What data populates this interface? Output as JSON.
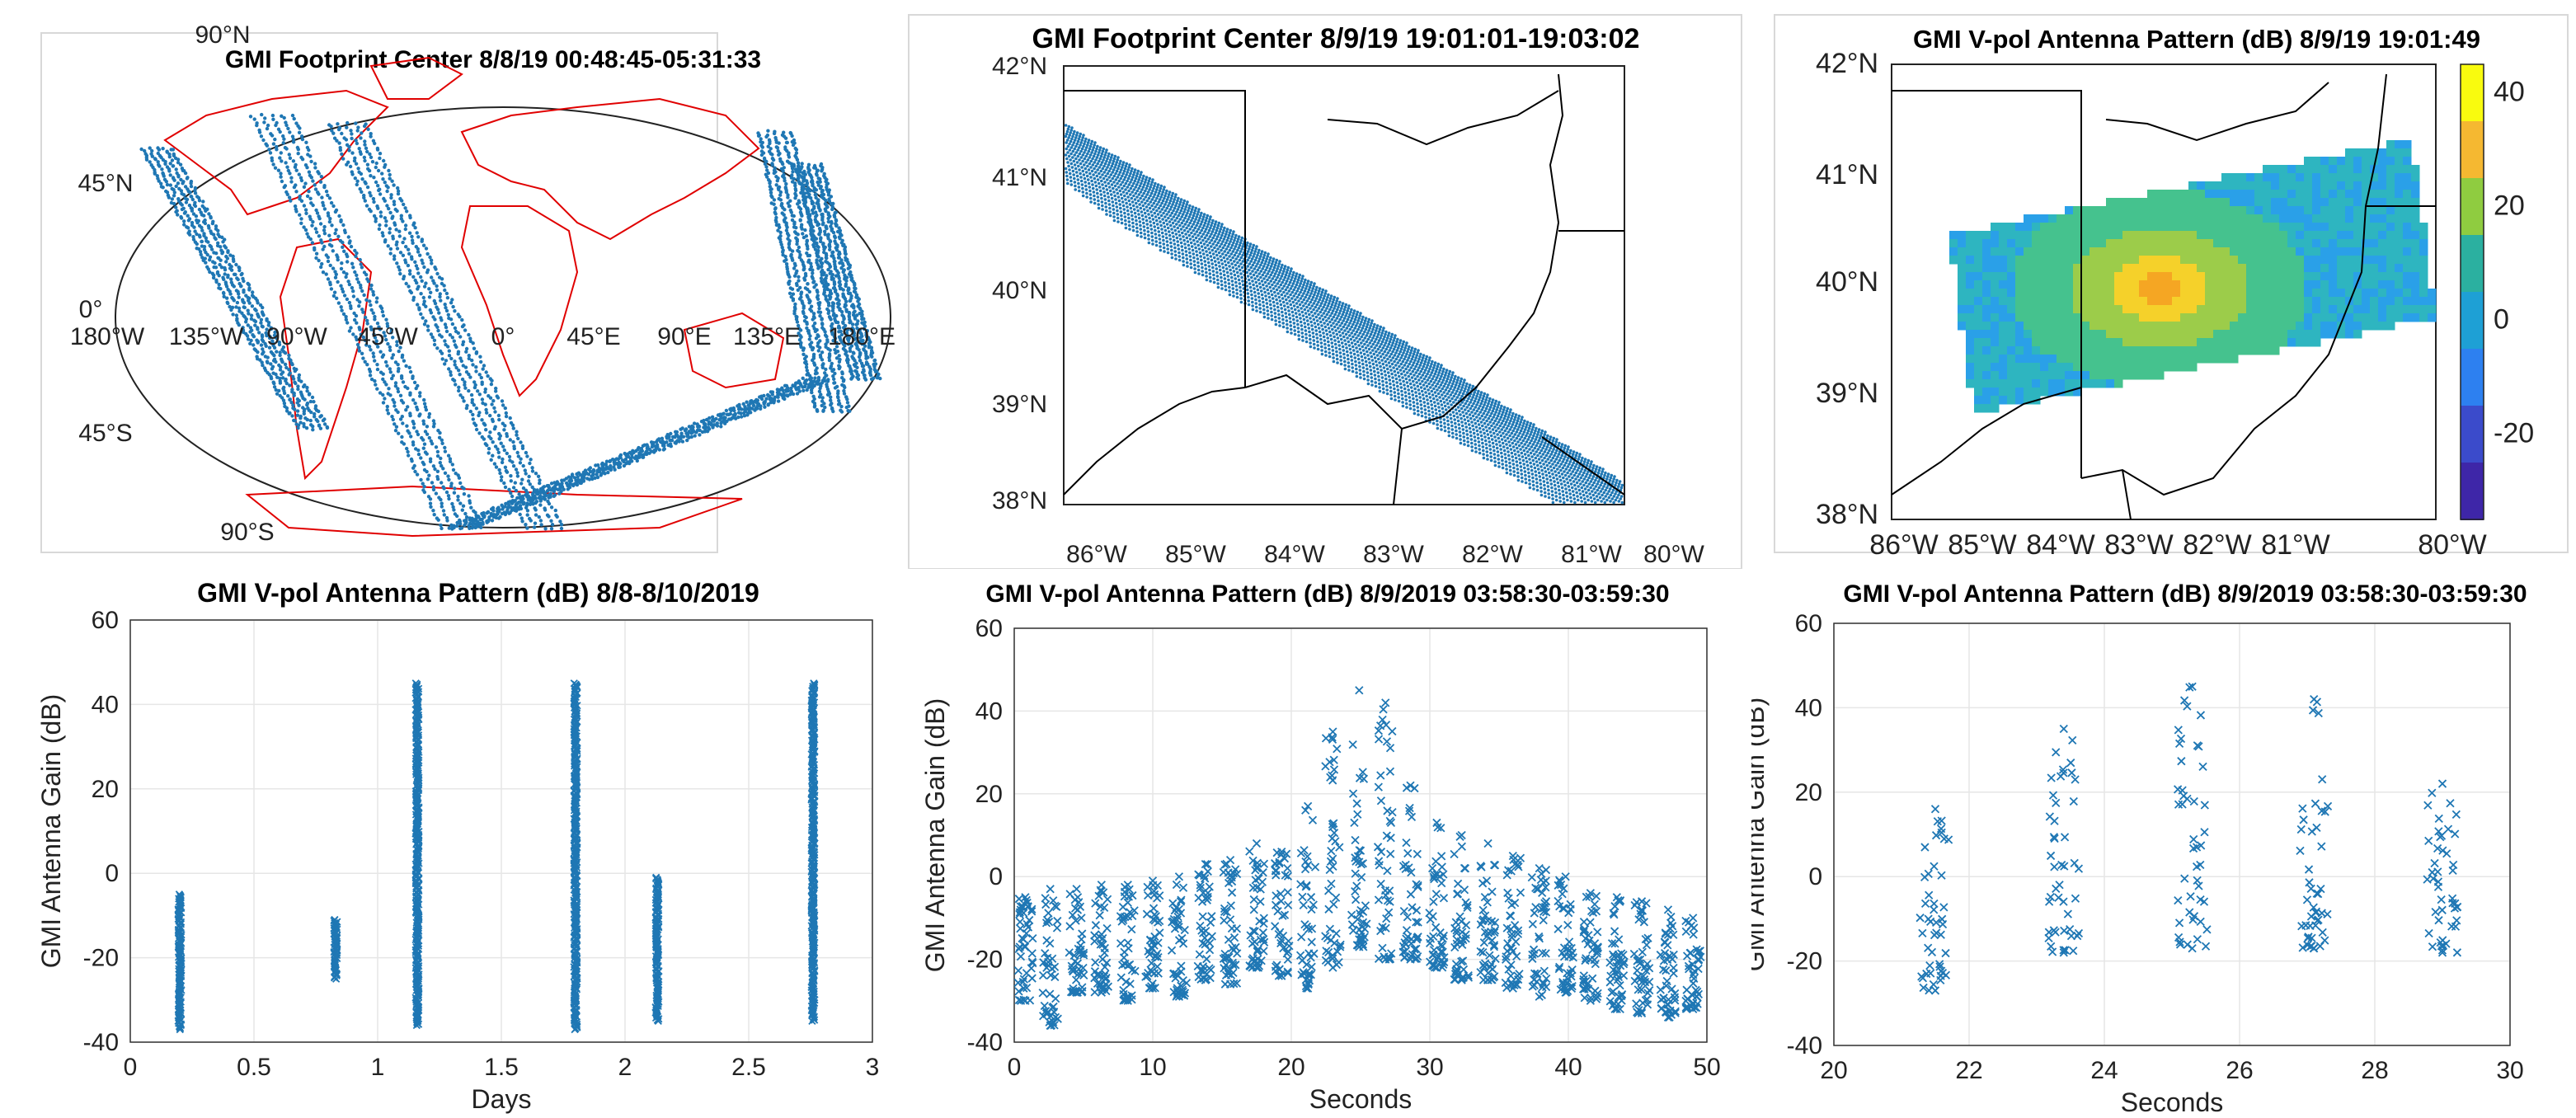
{
  "chart_data": [
    {
      "type": "scatter",
      "subtype": "map",
      "title": "GMI Footprint Center 8/8/19 00:48:45-05:31:33",
      "projection": "world",
      "lon_ticks": [
        "180°W",
        "135°W",
        "90°W",
        "45°W",
        "0°",
        "45°E",
        "90°E",
        "135°E",
        "180°E"
      ],
      "lat_ticks": [
        "90°N",
        "45°N",
        "0°",
        "45°S",
        "90°S"
      ],
      "colors": {
        "points": "#1f77b4",
        "coast": "#e00000"
      }
    },
    {
      "type": "scatter",
      "subtype": "map",
      "title": "GMI Footprint Center 8/9/19 19:01:01-19:03:02",
      "lon_ticks": [
        "86°W",
        "85°W",
        "84°W",
        "83°W",
        "82°W",
        "81°W",
        "80°W"
      ],
      "lat_ticks": [
        "42°N",
        "41°N",
        "40°N",
        "39°N",
        "38°N"
      ],
      "xlim": [
        -86,
        -80
      ],
      "ylim": [
        38,
        42
      ],
      "colors": {
        "points": "#1f77b4",
        "borders": "#000000"
      }
    },
    {
      "type": "heatmap",
      "subtype": "map",
      "title": "GMI V-pol Antenna Pattern (dB) 8/9/19 19:01:49",
      "lon_ticks": [
        "86°W",
        "85°W",
        "84°W",
        "83°W",
        "82°W",
        "81°W",
        "80°W"
      ],
      "lat_ticks": [
        "42°N",
        "41°N",
        "40°N",
        "39°N",
        "38°N"
      ],
      "xlim": [
        -86,
        -80
      ],
      "ylim": [
        38,
        42
      ],
      "colorbar": {
        "ticks": [
          40,
          20,
          0,
          -20
        ],
        "range": [
          -35,
          45
        ]
      },
      "peak": {
        "lon": -83.3,
        "lat": 40.05
      }
    },
    {
      "type": "scatter",
      "title": "GMI V-pol Antenna Pattern (dB) 8/8-8/10/2019",
      "xlabel": "Days",
      "ylabel": "GMI Antenna Gain (dB)",
      "xlim": [
        0,
        3
      ],
      "ylim": [
        -40,
        60
      ],
      "xticks": [
        0,
        0.5,
        1,
        1.5,
        2,
        2.5,
        3
      ],
      "yticks": [
        -40,
        -20,
        0,
        20,
        40,
        60
      ],
      "grid": true,
      "columns": [
        {
          "x": 0.2,
          "ymin": -37,
          "ymax": -5
        },
        {
          "x": 0.83,
          "ymin": -25,
          "ymax": -11
        },
        {
          "x": 1.16,
          "ymin": -36,
          "ymax": 45
        },
        {
          "x": 1.8,
          "ymin": -37,
          "ymax": 45
        },
        {
          "x": 2.13,
          "ymin": -35,
          "ymax": -1
        },
        {
          "x": 2.76,
          "ymin": -35,
          "ymax": 45
        }
      ]
    },
    {
      "type": "scatter",
      "title": "GMI V-pol Antenna Pattern (dB) 8/9/2019 03:58:30-03:59:30",
      "xlabel": "Seconds",
      "ylabel": "GMI Antenna Gain (dB)",
      "xlim": [
        0,
        50
      ],
      "ylim": [
        -40,
        60
      ],
      "xticks": [
        0,
        10,
        20,
        30,
        40,
        50
      ],
      "yticks": [
        -40,
        -20,
        0,
        20,
        40,
        60
      ],
      "grid": true,
      "clusters": [
        {
          "x": 0.8,
          "ymin": -30,
          "ymax": -5
        },
        {
          "x": 2.6,
          "ymin": -36,
          "ymax": -3
        },
        {
          "x": 4.5,
          "ymin": -28,
          "ymax": -3
        },
        {
          "x": 6.3,
          "ymin": -28,
          "ymax": -2
        },
        {
          "x": 8.2,
          "ymin": -30,
          "ymax": -2
        },
        {
          "x": 10.0,
          "ymin": -27,
          "ymax": -1
        },
        {
          "x": 11.9,
          "ymin": -29,
          "ymax": 0
        },
        {
          "x": 13.8,
          "ymin": -25,
          "ymax": 3
        },
        {
          "x": 15.6,
          "ymin": -26,
          "ymax": 4
        },
        {
          "x": 17.5,
          "ymin": -22,
          "ymax": 8
        },
        {
          "x": 19.3,
          "ymin": -24,
          "ymax": 6
        },
        {
          "x": 21.2,
          "ymin": -27,
          "ymax": 17
        },
        {
          "x": 23.0,
          "ymin": -22,
          "ymax": 35
        },
        {
          "x": 24.9,
          "ymin": -17,
          "ymax": 45
        },
        {
          "x": 26.8,
          "ymin": -20,
          "ymax": 42
        },
        {
          "x": 28.6,
          "ymin": -20,
          "ymax": 22
        },
        {
          "x": 30.5,
          "ymin": -22,
          "ymax": 13
        },
        {
          "x": 32.3,
          "ymin": -25,
          "ymax": 10
        },
        {
          "x": 34.2,
          "ymin": -25,
          "ymax": 8
        },
        {
          "x": 36.0,
          "ymin": -27,
          "ymax": 5
        },
        {
          "x": 37.9,
          "ymin": -29,
          "ymax": 2
        },
        {
          "x": 39.8,
          "ymin": -28,
          "ymax": 0
        },
        {
          "x": 41.6,
          "ymin": -30,
          "ymax": -4
        },
        {
          "x": 43.5,
          "ymin": -32,
          "ymax": -5
        },
        {
          "x": 45.3,
          "ymin": -33,
          "ymax": -6
        },
        {
          "x": 47.2,
          "ymin": -34,
          "ymax": -8
        },
        {
          "x": 49.0,
          "ymin": -32,
          "ymax": -10
        }
      ]
    },
    {
      "type": "scatter",
      "title": "GMI V-pol Antenna Pattern (dB) 8/9/2019 03:58:30-03:59:30",
      "xlabel": "Seconds",
      "ylabel": "GMI Antenna Gain (dB)",
      "xlim": [
        20,
        30
      ],
      "ylim": [
        -40,
        60
      ],
      "xticks": [
        20,
        22,
        24,
        26,
        28,
        30
      ],
      "yticks": [
        -40,
        -20,
        0,
        20,
        40,
        60
      ],
      "grid": true,
      "clusters": [
        {
          "x": 21.5,
          "ymin": -27,
          "ymax": 16
        },
        {
          "x": 23.4,
          "ymin": -18,
          "ymax": 35
        },
        {
          "x": 25.3,
          "ymin": -17,
          "ymax": 45
        },
        {
          "x": 27.1,
          "ymin": -17,
          "ymax": 42
        },
        {
          "x": 29.0,
          "ymin": -18,
          "ymax": 22
        }
      ]
    }
  ]
}
